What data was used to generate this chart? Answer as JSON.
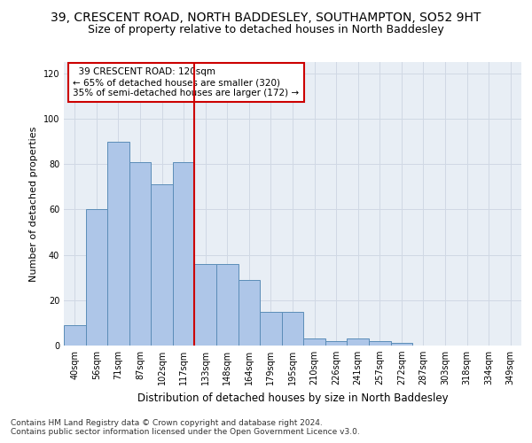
{
  "title_line1": "39, CRESCENT ROAD, NORTH BADDESLEY, SOUTHAMPTON, SO52 9HT",
  "title_line2": "Size of property relative to detached houses in North Baddesley",
  "xlabel": "Distribution of detached houses by size in North Baddesley",
  "ylabel": "Number of detached properties",
  "categories": [
    "40sqm",
    "56sqm",
    "71sqm",
    "87sqm",
    "102sqm",
    "117sqm",
    "133sqm",
    "148sqm",
    "164sqm",
    "179sqm",
    "195sqm",
    "210sqm",
    "226sqm",
    "241sqm",
    "257sqm",
    "272sqm",
    "287sqm",
    "303sqm",
    "318sqm",
    "334sqm",
    "349sqm"
  ],
  "values": [
    9,
    60,
    90,
    81,
    71,
    81,
    36,
    36,
    29,
    15,
    15,
    3,
    2,
    3,
    2,
    1,
    0,
    0,
    0,
    0,
    0
  ],
  "bar_color": "#aec6e8",
  "bar_edge_color": "#5b8db8",
  "vline_x_index": 5.5,
  "vline_color": "#cc0000",
  "annotation_text": "  39 CRESCENT ROAD: 120sqm  \n← 65% of detached houses are smaller (320)\n35% of semi-detached houses are larger (172) →",
  "annotation_box_color": "#ffffff",
  "annotation_box_edge": "#cc0000",
  "ylim": [
    0,
    125
  ],
  "yticks": [
    0,
    20,
    40,
    60,
    80,
    100,
    120
  ],
  "grid_color": "#d0d8e4",
  "bg_color": "#e8eef5",
  "footer_line1": "Contains HM Land Registry data © Crown copyright and database right 2024.",
  "footer_line2": "Contains public sector information licensed under the Open Government Licence v3.0.",
  "title_fontsize": 10,
  "subtitle_fontsize": 9,
  "xlabel_fontsize": 8.5,
  "ylabel_fontsize": 8,
  "tick_fontsize": 7,
  "annotation_fontsize": 7.5,
  "footer_fontsize": 6.5
}
